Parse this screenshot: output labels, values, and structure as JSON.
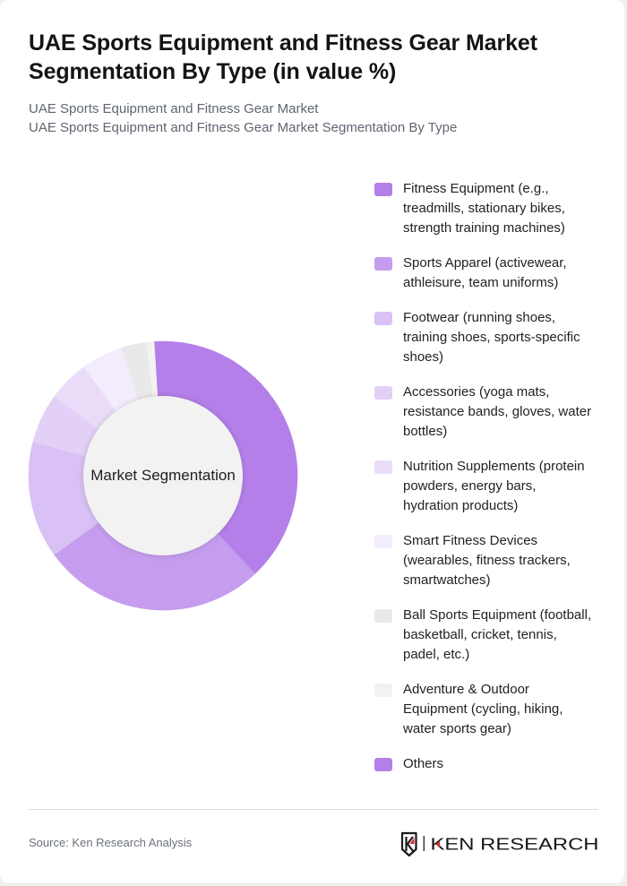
{
  "header": {
    "title": "UAE Sports Equipment and Fitness Gear Market Segmentation By Type (in value %)",
    "subtitle_lines": [
      "UAE Sports Equipment and Fitness Gear Market",
      "UAE Sports Equipment and Fitness Gear Market Segmentation By Type"
    ]
  },
  "chart_data": {
    "type": "pie",
    "variant": "donut",
    "title": "UAE Sports Equipment and Fitness Gear Market Segmentation By Type (in value %)",
    "center_label": "Market Segmentation",
    "categories": [
      "Fitness Equipment (e.g., treadmills, stationary bikes, strength training machines)",
      "Sports Apparel (activewear, athleisure, team uniforms)",
      "Footwear (running shoes, training shoes, sports-specific shoes)",
      "Accessories (yoga mats, resistance bands, gloves, water bottles)",
      "Nutrition Supplements (protein powders, energy bars, hydration products)",
      "Smart Fitness Devices (wearables, fitness trackers, smartwatches)",
      "Ball Sports Equipment (football, basketball, cricket, tennis, padel, etc.)",
      "Adventure & Outdoor Equipment (cycling, hiking, water sports gear)",
      "Others"
    ],
    "values": [
      38,
      27,
      14,
      6,
      5,
      5,
      3,
      1,
      1
    ],
    "unit": "%",
    "colors": [
      "#b47fe9",
      "#c59cee",
      "#d9c0f5",
      "#e3d0f7",
      "#eadcf9",
      "#f3ecfc",
      "#e9e9e9",
      "#f2f2f2",
      "#b47fe9"
    ],
    "center_fill": "#f2f2f2",
    "start_angle": 0,
    "inner_radius_ratio": 0.593,
    "legend_position": "right",
    "data_labels": false
  },
  "footer": {
    "source": "Source: Ken Research Analysis",
    "logo_text": "KEN RESEARCH",
    "logo_accent": "#d42b2b"
  }
}
